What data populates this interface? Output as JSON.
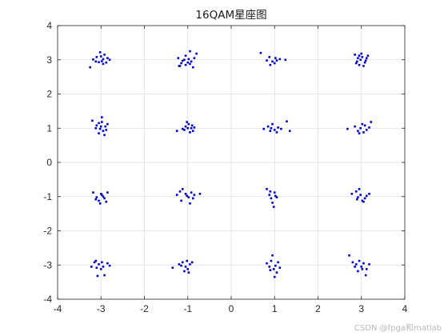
{
  "chart_data": {
    "type": "scatter",
    "title": "16QAM星座图",
    "xlabel": "",
    "ylabel": "",
    "xlim": [
      -4,
      4
    ],
    "ylim": [
      -4,
      4
    ],
    "xticks": [
      "-4",
      "-3",
      "-2",
      "-1",
      "0",
      "1",
      "2",
      "3",
      "4"
    ],
    "yticks": [
      "-4",
      "-3",
      "-2",
      "-1",
      "0",
      "1",
      "2",
      "3",
      "4"
    ],
    "grid": true,
    "marker": "square",
    "series": [
      {
        "color": "#0000cc",
        "points": [
          [
            -3.25,
            2.78
          ],
          [
            -3.18,
            3.01
          ],
          [
            -3.05,
            2.93
          ],
          [
            -2.95,
            2.88
          ],
          [
            -3.02,
            3.22
          ],
          [
            -2.92,
            3.15
          ],
          [
            -2.85,
            3.05
          ],
          [
            -2.98,
            2.96
          ],
          [
            -3.1,
            3.08
          ],
          [
            -2.88,
            2.92
          ],
          [
            -3.0,
            3.1
          ],
          [
            -2.8,
            3.0
          ],
          [
            -3.12,
            2.95
          ],
          [
            -2.95,
            3.02
          ],
          [
            -1.2,
            2.82
          ],
          [
            -1.12,
            2.97
          ],
          [
            -1.22,
            3.05
          ],
          [
            -1.05,
            3.12
          ],
          [
            -0.95,
            3.25
          ],
          [
            -1.05,
            2.85
          ],
          [
            -0.92,
            2.95
          ],
          [
            -0.85,
            3.05
          ],
          [
            -0.8,
            3.18
          ],
          [
            -0.88,
            2.78
          ],
          [
            -1.15,
            2.9
          ],
          [
            -0.98,
            3.02
          ],
          [
            -1.0,
            2.92
          ],
          [
            -1.08,
            3.0
          ],
          [
            -0.95,
            2.88
          ],
          [
            -1.18,
            2.82
          ],
          [
            0.68,
            3.2
          ],
          [
            0.82,
            2.98
          ],
          [
            0.9,
            2.85
          ],
          [
            0.95,
            2.95
          ],
          [
            1.02,
            3.05
          ],
          [
            1.12,
            3.02
          ],
          [
            1.25,
            3.0
          ],
          [
            1.0,
            2.9
          ],
          [
            0.88,
            3.08
          ],
          [
            1.05,
            2.98
          ],
          [
            2.85,
            3.15
          ],
          [
            2.9,
            2.95
          ],
          [
            2.95,
            2.85
          ],
          [
            3.02,
            3.08
          ],
          [
            3.1,
            2.98
          ],
          [
            3.15,
            3.12
          ],
          [
            3.05,
            2.82
          ],
          [
            2.92,
            3.05
          ],
          [
            3.0,
            3.18
          ],
          [
            2.88,
            2.9
          ],
          [
            3.12,
            3.05
          ],
          [
            2.98,
            3.0
          ],
          [
            3.08,
            2.92
          ],
          [
            2.95,
            3.12
          ],
          [
            -3.2,
            1.22
          ],
          [
            -3.1,
            1.08
          ],
          [
            -3.05,
            1.15
          ],
          [
            -3.02,
            0.98
          ],
          [
            -2.95,
            0.92
          ],
          [
            -2.9,
            1.05
          ],
          [
            -2.85,
            1.12
          ],
          [
            -2.98,
            1.32
          ],
          [
            -3.05,
            0.85
          ],
          [
            -2.92,
            0.8
          ],
          [
            -3.0,
            1.05
          ],
          [
            -2.88,
            0.95
          ],
          [
            -3.12,
            1.0
          ],
          [
            -2.98,
            1.18
          ],
          [
            -1.25,
            0.92
          ],
          [
            -1.12,
            0.98
          ],
          [
            -1.05,
            1.05
          ],
          [
            -0.98,
            1.12
          ],
          [
            -0.92,
            1.0
          ],
          [
            -0.85,
            1.02
          ],
          [
            -0.95,
            0.88
          ],
          [
            -1.02,
            1.18
          ],
          [
            -0.9,
            1.08
          ],
          [
            -1.08,
            0.95
          ],
          [
            -0.88,
            0.92
          ],
          [
            -1.0,
            1.0
          ],
          [
            0.75,
            0.98
          ],
          [
            0.85,
            1.05
          ],
          [
            0.9,
            0.92
          ],
          [
            0.95,
            1.12
          ],
          [
            1.0,
            0.95
          ],
          [
            1.08,
            1.02
          ],
          [
            1.15,
            0.98
          ],
          [
            1.28,
            1.2
          ],
          [
            1.35,
            0.92
          ],
          [
            1.05,
            0.88
          ],
          [
            0.92,
            1.0
          ],
          [
            2.68,
            0.98
          ],
          [
            2.85,
            1.05
          ],
          [
            2.92,
            0.92
          ],
          [
            2.98,
            1.0
          ],
          [
            3.05,
            0.88
          ],
          [
            3.12,
            0.95
          ],
          [
            3.18,
            1.02
          ],
          [
            3.22,
            1.18
          ],
          [
            3.02,
            1.12
          ],
          [
            2.95,
            0.85
          ],
          [
            3.08,
            1.08
          ],
          [
            -3.18,
            -0.88
          ],
          [
            -3.1,
            -1.02
          ],
          [
            -3.05,
            -1.12
          ],
          [
            -2.98,
            -0.95
          ],
          [
            -2.92,
            -1.05
          ],
          [
            -2.85,
            -0.88
          ],
          [
            -3.02,
            -1.2
          ],
          [
            -2.95,
            -1.0
          ],
          [
            -3.12,
            -1.08
          ],
          [
            -2.88,
            -1.15
          ],
          [
            -3.0,
            -0.92
          ],
          [
            -1.25,
            -0.95
          ],
          [
            -1.18,
            -0.85
          ],
          [
            -1.12,
            -0.78
          ],
          [
            -1.05,
            -0.92
          ],
          [
            -0.98,
            -1.02
          ],
          [
            -0.92,
            -0.88
          ],
          [
            -0.85,
            -0.95
          ],
          [
            -0.72,
            -0.92
          ],
          [
            -1.15,
            -1.12
          ],
          [
            -0.95,
            -1.2
          ],
          [
            -1.02,
            -0.98
          ],
          [
            -0.88,
            -1.05
          ],
          [
            0.82,
            -0.78
          ],
          [
            0.88,
            -0.95
          ],
          [
            0.92,
            -1.05
          ],
          [
            0.95,
            -1.18
          ],
          [
            1.0,
            -0.88
          ],
          [
            1.05,
            -1.02
          ],
          [
            0.98,
            -1.3
          ],
          [
            0.9,
            -0.85
          ],
          [
            1.02,
            -0.98
          ],
          [
            2.78,
            -0.92
          ],
          [
            2.88,
            -0.85
          ],
          [
            2.92,
            -1.02
          ],
          [
            2.98,
            -0.95
          ],
          [
            3.02,
            -1.12
          ],
          [
            3.08,
            -1.05
          ],
          [
            3.12,
            -0.98
          ],
          [
            3.18,
            -0.92
          ],
          [
            2.95,
            -0.78
          ],
          [
            3.05,
            -1.15
          ],
          [
            2.9,
            -1.08
          ],
          [
            -3.22,
            -3.05
          ],
          [
            -3.15,
            -2.92
          ],
          [
            -3.1,
            -3.08
          ],
          [
            -3.05,
            -2.98
          ],
          [
            -2.95,
            -3.05
          ],
          [
            -2.85,
            -2.95
          ],
          [
            -2.8,
            -3.02
          ],
          [
            -3.0,
            -3.12
          ],
          [
            -3.08,
            -3.32
          ],
          [
            -2.92,
            -3.3
          ],
          [
            -3.12,
            -2.88
          ],
          [
            -2.98,
            -2.92
          ],
          [
            -1.35,
            -3.08
          ],
          [
            -1.2,
            -2.98
          ],
          [
            -1.12,
            -2.92
          ],
          [
            -1.05,
            -3.05
          ],
          [
            -1.0,
            -3.12
          ],
          [
            -0.95,
            -2.98
          ],
          [
            -0.9,
            -2.92
          ],
          [
            -1.08,
            -3.18
          ],
          [
            -0.98,
            -3.22
          ],
          [
            -1.15,
            -3.02
          ],
          [
            -1.02,
            -2.88
          ],
          [
            0.82,
            -2.95
          ],
          [
            0.88,
            -3.05
          ],
          [
            0.92,
            -2.88
          ],
          [
            0.98,
            -3.12
          ],
          [
            1.02,
            -3.02
          ],
          [
            1.08,
            -2.92
          ],
          [
            1.12,
            -3.08
          ],
          [
            1.0,
            -3.35
          ],
          [
            0.95,
            -2.72
          ],
          [
            1.05,
            -3.22
          ],
          [
            0.9,
            -3.15
          ],
          [
            2.72,
            -2.72
          ],
          [
            2.8,
            -2.92
          ],
          [
            2.88,
            -2.98
          ],
          [
            2.95,
            -2.88
          ],
          [
            3.0,
            -3.05
          ],
          [
            3.05,
            -2.95
          ],
          [
            3.12,
            -3.12
          ],
          [
            3.18,
            -2.98
          ],
          [
            3.1,
            -3.3
          ],
          [
            2.92,
            -3.18
          ],
          [
            3.02,
            -3.12
          ],
          [
            2.85,
            -3.05
          ]
        ]
      }
    ]
  },
  "watermark": "CSDN @fpga和matlab"
}
